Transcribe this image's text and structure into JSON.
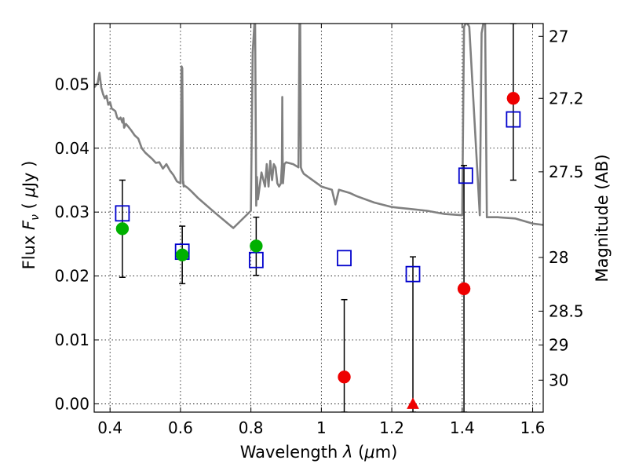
{
  "chart_data": {
    "type": "scatter",
    "xlabel": "Wavelength  λ (μm)",
    "ylabel": "Flux  F_ν  ( μJy )",
    "y2label": "Magnitude (AB)",
    "xlim": [
      0.355,
      1.63
    ],
    "ylim": [
      -0.0013,
      0.0595
    ],
    "grid": true,
    "x_ticks": [
      0.4,
      0.6,
      0.8,
      1.0,
      1.2,
      1.4,
      1.6
    ],
    "x_tick_labels": [
      "0.4",
      "0.6",
      "0.8",
      "1",
      "1.2",
      "1.4",
      "1.6"
    ],
    "y_ticks": [
      0.0,
      0.01,
      0.02,
      0.03,
      0.04,
      0.05
    ],
    "y_tick_labels": [
      "0.00",
      "0.01",
      "0.02",
      "0.03",
      "0.04",
      "0.05"
    ],
    "y2_ticks": [
      {
        "label": "27",
        "flux": 0.0575
      },
      {
        "label": "27.2",
        "flux": 0.0478
      },
      {
        "label": "27.5",
        "flux": 0.0363
      },
      {
        "label": "28",
        "flux": 0.0229
      },
      {
        "label": "28.5",
        "flux": 0.0145
      },
      {
        "label": "29",
        "flux": 0.0092
      },
      {
        "label": "30",
        "flux": 0.0037
      }
    ],
    "template_spectrum": {
      "color": "#808080",
      "x": [
        0.355,
        0.365,
        0.37,
        0.375,
        0.38,
        0.385,
        0.39,
        0.395,
        0.4,
        0.405,
        0.41,
        0.415,
        0.42,
        0.425,
        0.43,
        0.435,
        0.438,
        0.44,
        0.445,
        0.45,
        0.46,
        0.47,
        0.48,
        0.49,
        0.5,
        0.51,
        0.52,
        0.53,
        0.54,
        0.55,
        0.56,
        0.57,
        0.58,
        0.59,
        0.6,
        0.603,
        0.605,
        0.607,
        0.608,
        0.609,
        0.61,
        0.62,
        0.63,
        0.65,
        0.7,
        0.75,
        0.8,
        0.805,
        0.81,
        0.812,
        0.815,
        0.817,
        0.82,
        0.83,
        0.84,
        0.845,
        0.85,
        0.855,
        0.86,
        0.865,
        0.87,
        0.875,
        0.88,
        0.885,
        0.888,
        0.889,
        0.89,
        0.891,
        0.895,
        0.9,
        0.92,
        0.935,
        0.938,
        0.94,
        0.942,
        0.945,
        0.95,
        1.0,
        1.03,
        1.04,
        1.05,
        1.08,
        1.1,
        1.15,
        1.2,
        1.25,
        1.3,
        1.35,
        1.4,
        1.405,
        1.41,
        1.415,
        1.42,
        1.45,
        1.455,
        1.46,
        1.465,
        1.47,
        1.5,
        1.55,
        1.6,
        1.63
      ],
      "y": [
        0.0495,
        0.0502,
        0.0518,
        0.0495,
        0.0485,
        0.0478,
        0.0482,
        0.0468,
        0.0472,
        0.0462,
        0.046,
        0.0458,
        0.0448,
        0.0445,
        0.0448,
        0.044,
        0.0447,
        0.0432,
        0.0438,
        0.0435,
        0.0428,
        0.042,
        0.0415,
        0.04,
        0.0393,
        0.0388,
        0.0383,
        0.0377,
        0.0378,
        0.0368,
        0.0375,
        0.0365,
        0.0358,
        0.0348,
        0.0345,
        0.0528,
        0.0525,
        0.0345,
        0.0348,
        0.034,
        0.0342,
        0.0338,
        0.0333,
        0.0322,
        0.0298,
        0.0275,
        0.0302,
        0.055,
        0.0595,
        0.0595,
        0.031,
        0.0355,
        0.032,
        0.0362,
        0.034,
        0.0375,
        0.034,
        0.038,
        0.035,
        0.0375,
        0.037,
        0.0345,
        0.034,
        0.0345,
        0.0375,
        0.048,
        0.039,
        0.0345,
        0.0375,
        0.0378,
        0.0375,
        0.037,
        0.0595,
        0.0595,
        0.037,
        0.0365,
        0.036,
        0.034,
        0.0335,
        0.0312,
        0.0335,
        0.033,
        0.0325,
        0.0315,
        0.0308,
        0.0305,
        0.0302,
        0.0297,
        0.0295,
        0.059,
        0.0595,
        0.0595,
        0.059,
        0.0295,
        0.058,
        0.0595,
        0.0595,
        0.0292,
        0.0292,
        0.029,
        0.0282,
        0.028
      ]
    },
    "series": [
      {
        "marker": "open-square",
        "color": "#0000cc",
        "x": [
          0.435,
          0.605,
          0.815,
          1.065,
          1.26,
          1.41,
          1.545
        ],
        "y": [
          0.0298,
          0.0238,
          0.0225,
          0.0228,
          0.0203,
          0.0357,
          0.0445
        ]
      },
      {
        "marker": "circle",
        "color": "#00b000",
        "x": [
          0.435,
          0.605,
          0.815
        ],
        "y": [
          0.0274,
          0.0233,
          0.0247
        ]
      },
      {
        "marker": "circle",
        "color": "#ee0000",
        "x": [
          1.065,
          1.405,
          1.545
        ],
        "y": [
          0.0042,
          0.018,
          0.0478
        ]
      },
      {
        "marker": "triangle",
        "color": "#ee0000",
        "x": [
          1.26
        ],
        "y": [
          0.0
        ]
      }
    ],
    "error_bars": [
      {
        "x": 0.435,
        "low": 0.0198,
        "high": 0.035
      },
      {
        "x": 0.605,
        "low": 0.0188,
        "high": 0.0278
      },
      {
        "x": 0.815,
        "low": 0.0201,
        "high": 0.0292
      },
      {
        "x": 1.065,
        "low": -0.0013,
        "high": 0.0163
      },
      {
        "x": 1.26,
        "low": -0.0013,
        "high": 0.023
      },
      {
        "x": 1.405,
        "low": -0.0013,
        "high": 0.0373
      },
      {
        "x": 1.545,
        "low": 0.035,
        "high": 0.0595
      }
    ]
  }
}
